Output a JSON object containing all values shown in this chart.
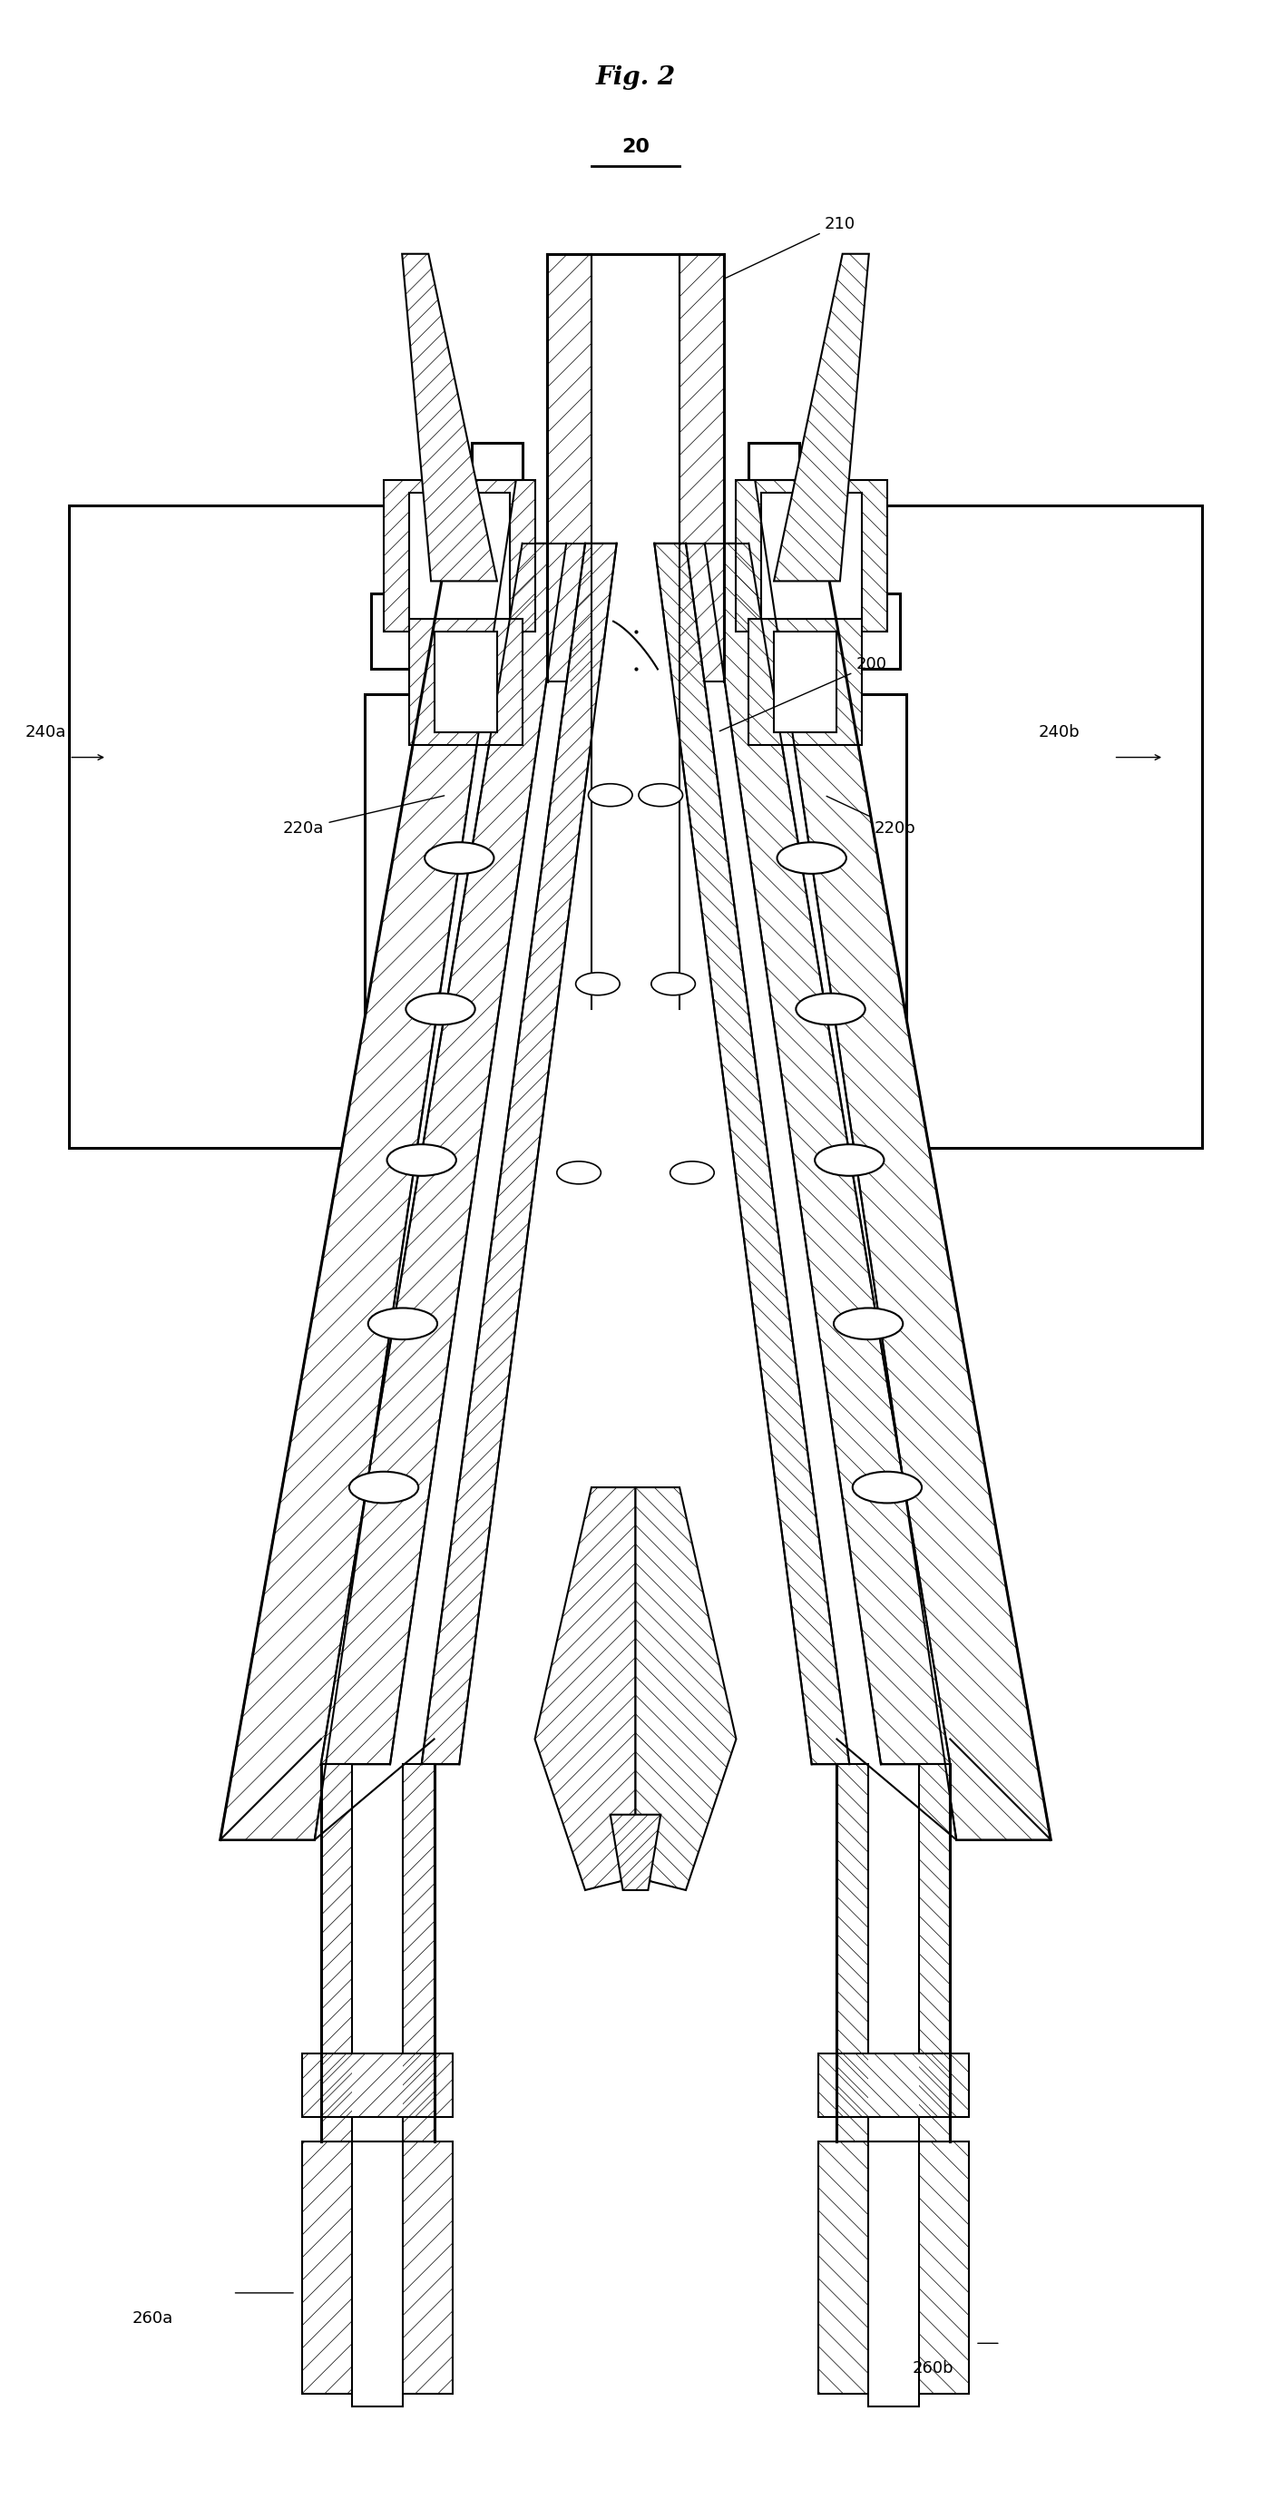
{
  "title": "Fig. 2",
  "label_20": "20",
  "label_210": "210",
  "label_200": "200",
  "label_220a": "220a",
  "label_220b": "220b",
  "label_240a": "240a",
  "label_240b": "240b",
  "label_260a": "260a",
  "label_260b": "260b",
  "bg_color": "#ffffff",
  "line_color": "#000000",
  "lw": 1.5,
  "tlw": 2.2,
  "hlw": 0.5
}
